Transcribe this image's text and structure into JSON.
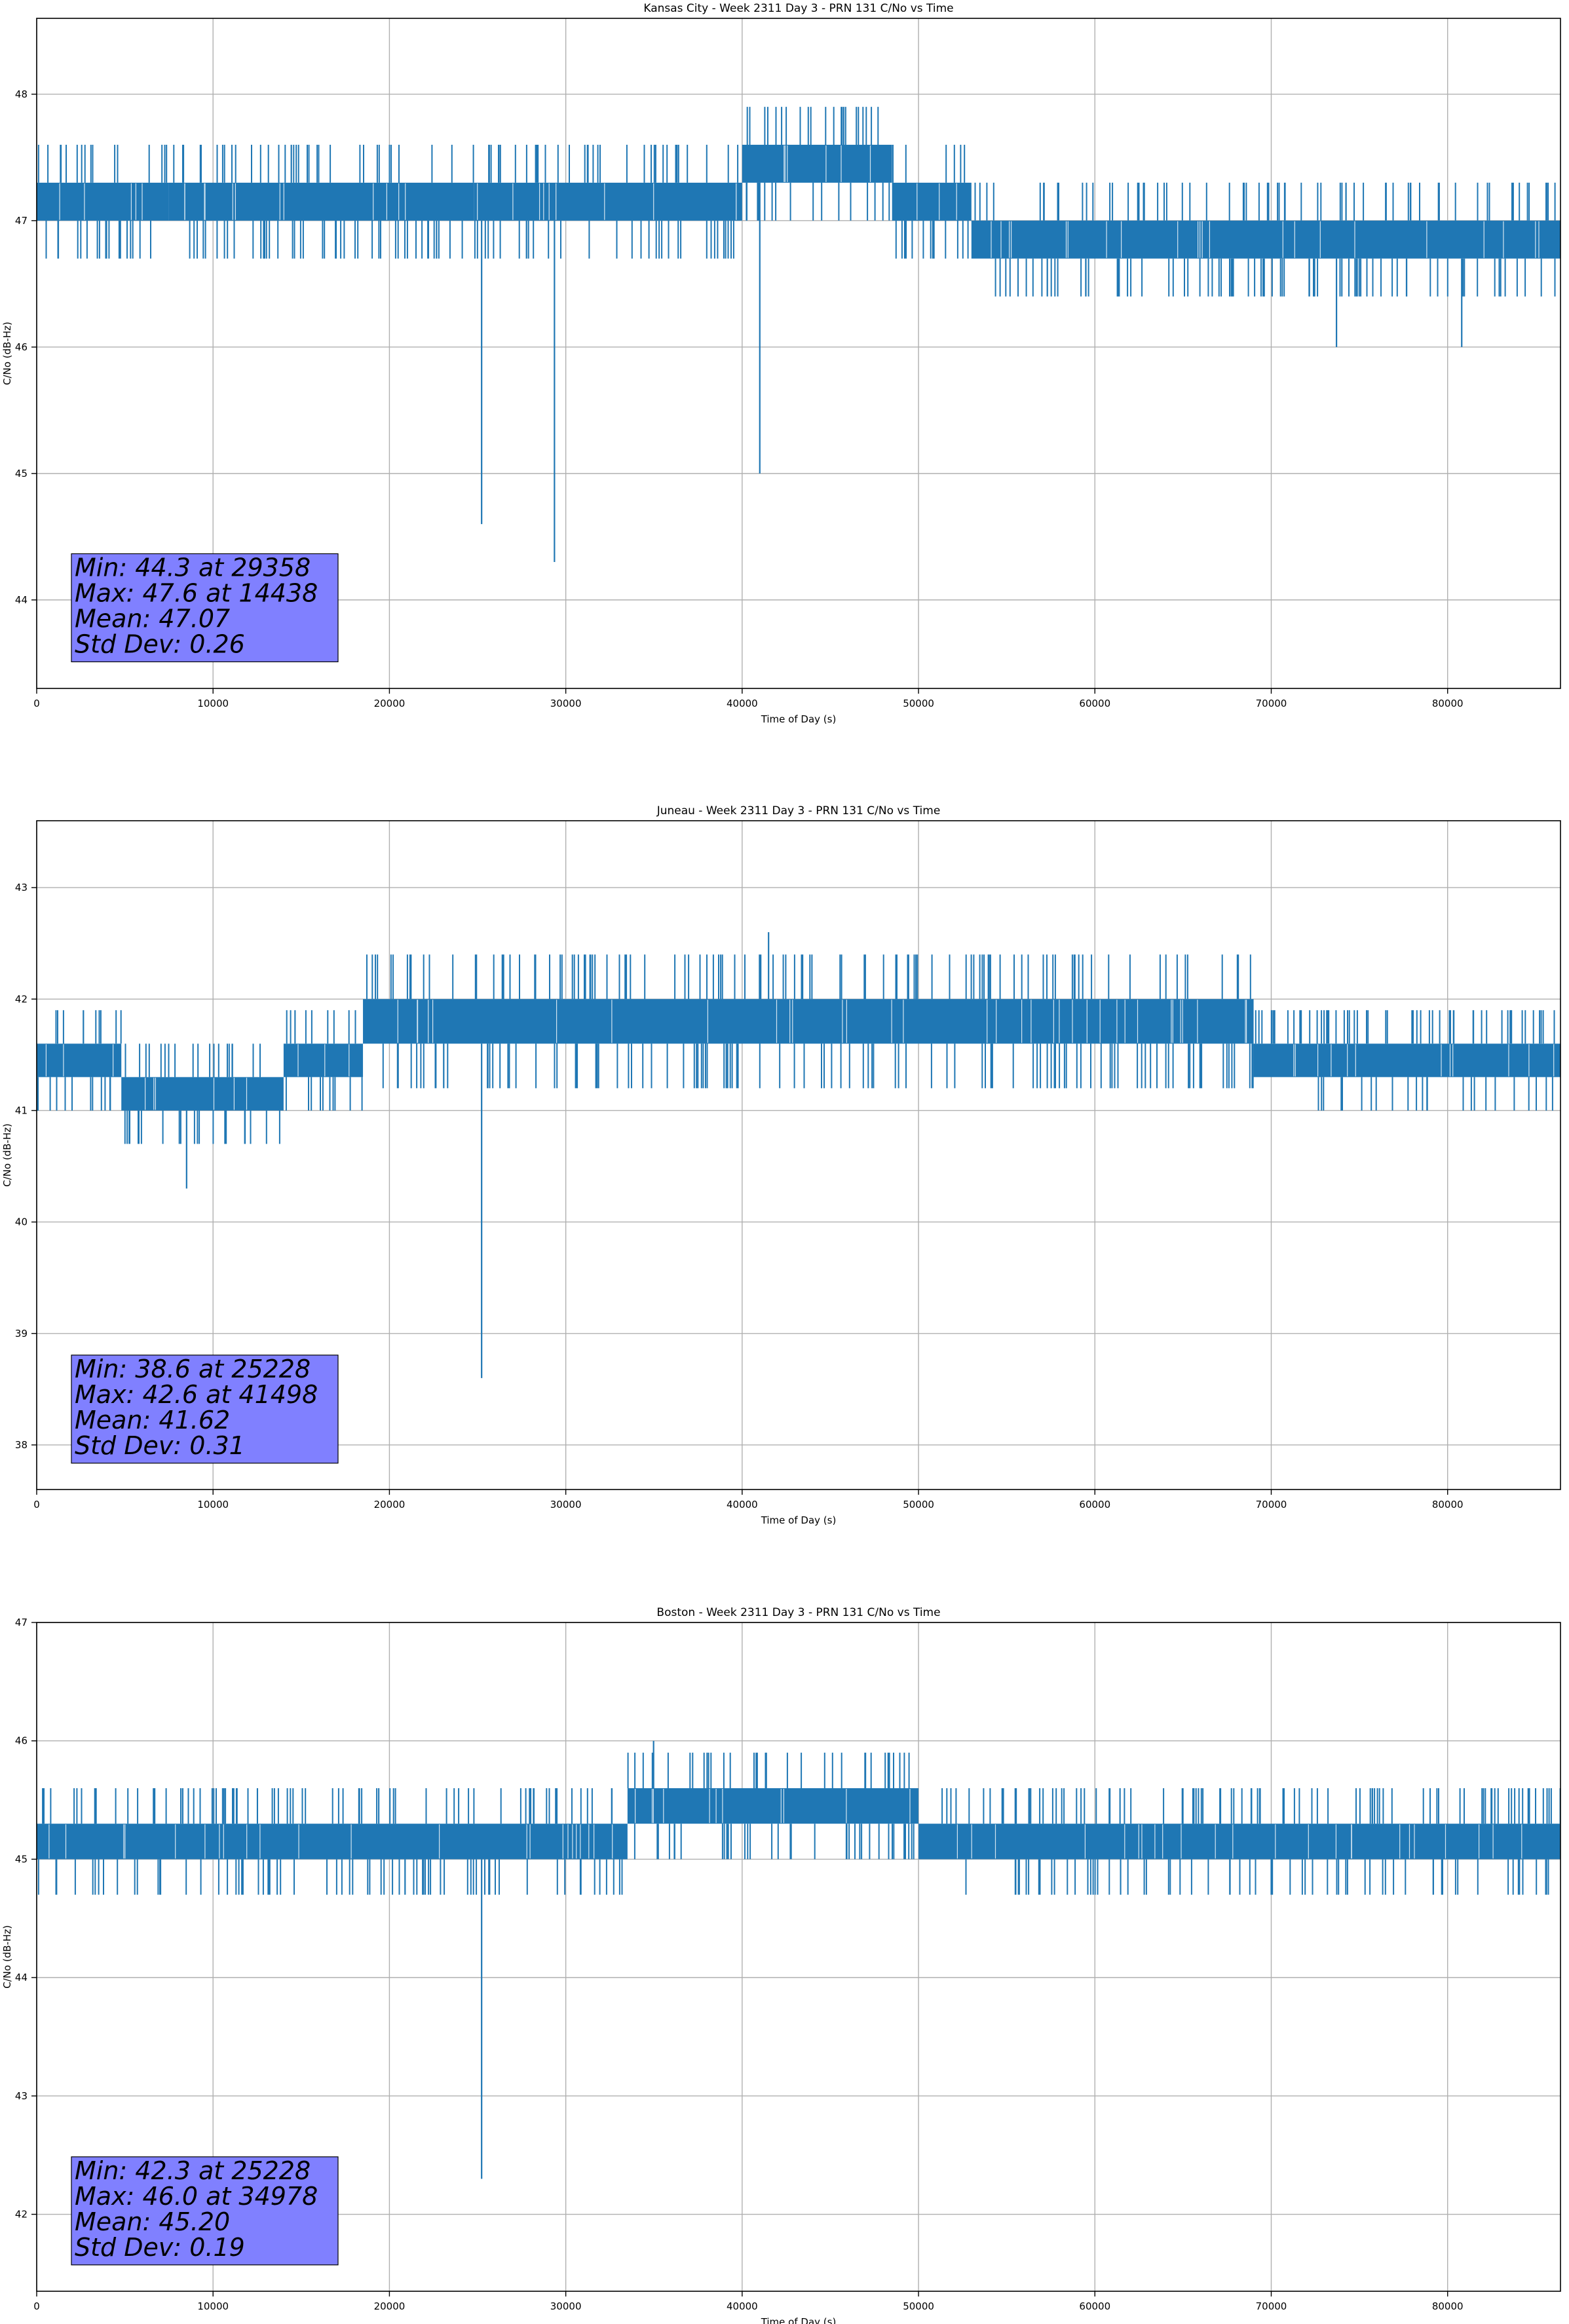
{
  "chart_data": [
    {
      "type": "line",
      "title": "Kansas City - Week 2311 Day 3 - PRN 131 C/No vs Time",
      "xlabel": "Time of Day (s)",
      "ylabel": "C/No (dB-Hz)",
      "xlim": [
        0,
        86400
      ],
      "ylim": [
        43.3,
        48.6
      ],
      "xticks": [
        "0",
        "10000",
        "20000",
        "30000",
        "40000",
        "50000",
        "60000",
        "70000",
        "80000"
      ],
      "yticks": [
        "44",
        "45",
        "46",
        "47",
        "48"
      ],
      "grid": true,
      "series_color": "#1f77b4",
      "bands": [
        {
          "x": [
            0,
            7500
          ],
          "y": [
            47.0,
            47.3
          ]
        },
        {
          "x": [
            7500,
            24800
          ],
          "y": [
            47.0,
            47.3
          ]
        },
        {
          "x": [
            24800,
            40000
          ],
          "y": [
            47.0,
            47.3
          ]
        },
        {
          "x": [
            40000,
            48500
          ],
          "y": [
            47.3,
            47.6
          ]
        },
        {
          "x": [
            48500,
            53000
          ],
          "y": [
            47.0,
            47.3
          ]
        },
        {
          "x": [
            53000,
            86400
          ],
          "y": [
            46.7,
            47.0
          ]
        }
      ],
      "x": [
        25228,
        29358,
        41000,
        73700,
        80800,
        14438
      ],
      "y": [
        44.6,
        44.3,
        45.0,
        46.0,
        46.0,
        47.6
      ],
      "stats_box": {
        "lines": [
          "Min: 44.3 at 29358",
          "Max: 47.6 at 14438",
          "Mean: 47.07",
          "Std Dev: 0.26"
        ],
        "color": "#8080ff"
      }
    },
    {
      "type": "line",
      "title": "Juneau - Week 2311 Day 3 - PRN 131 C/No vs Time",
      "xlabel": "Time of Day (s)",
      "ylabel": "C/No (dB-Hz)",
      "xlim": [
        0,
        86400
      ],
      "ylim": [
        37.6,
        43.6
      ],
      "xticks": [
        "0",
        "10000",
        "20000",
        "30000",
        "40000",
        "50000",
        "60000",
        "70000",
        "80000"
      ],
      "yticks": [
        "38",
        "39",
        "40",
        "41",
        "42",
        "43"
      ],
      "grid": true,
      "series_color": "#1f77b4",
      "bands": [
        {
          "x": [
            0,
            4800
          ],
          "y": [
            41.3,
            41.6
          ]
        },
        {
          "x": [
            4800,
            14000
          ],
          "y": [
            41.0,
            41.3
          ]
        },
        {
          "x": [
            14000,
            18500
          ],
          "y": [
            41.3,
            41.6
          ]
        },
        {
          "x": [
            18500,
            69000
          ],
          "y": [
            41.6,
            42.0
          ]
        },
        {
          "x": [
            69000,
            86400
          ],
          "y": [
            41.3,
            41.6
          ]
        }
      ],
      "x": [
        8500,
        25228,
        41498
      ],
      "y": [
        40.3,
        38.6,
        42.6
      ],
      "stats_box": {
        "lines": [
          "Min: 38.6 at 25228",
          "Max: 42.6 at 41498",
          "Mean: 41.62",
          "Std Dev: 0.31"
        ],
        "color": "#8080ff"
      }
    },
    {
      "type": "line",
      "title": "Boston - Week 2311 Day 3 - PRN 131 C/No vs Time",
      "xlabel": "Time of Day (s)",
      "ylabel": "C/No (dB-Hz)",
      "xlim": [
        0,
        86400
      ],
      "ylim": [
        41.35,
        47.0
      ],
      "xticks": [
        "0",
        "10000",
        "20000",
        "30000",
        "40000",
        "50000",
        "60000",
        "70000",
        "80000"
      ],
      "yticks": [
        "42",
        "43",
        "44",
        "45",
        "46",
        "47"
      ],
      "grid": true,
      "series_color": "#1f77b4",
      "bands": [
        {
          "x": [
            0,
            33500
          ],
          "y": [
            45.0,
            45.3
          ]
        },
        {
          "x": [
            33500,
            50000
          ],
          "y": [
            45.3,
            45.6
          ]
        },
        {
          "x": [
            50000,
            86400
          ],
          "y": [
            45.0,
            45.3
          ]
        }
      ],
      "x": [
        25228,
        34978
      ],
      "y": [
        42.3,
        46.0
      ],
      "stats_box": {
        "lines": [
          "Min: 42.3 at 25228",
          "Max: 46.0 at 34978",
          "Mean: 45.20",
          "Std Dev: 0.19"
        ],
        "color": "#8080ff"
      }
    }
  ]
}
